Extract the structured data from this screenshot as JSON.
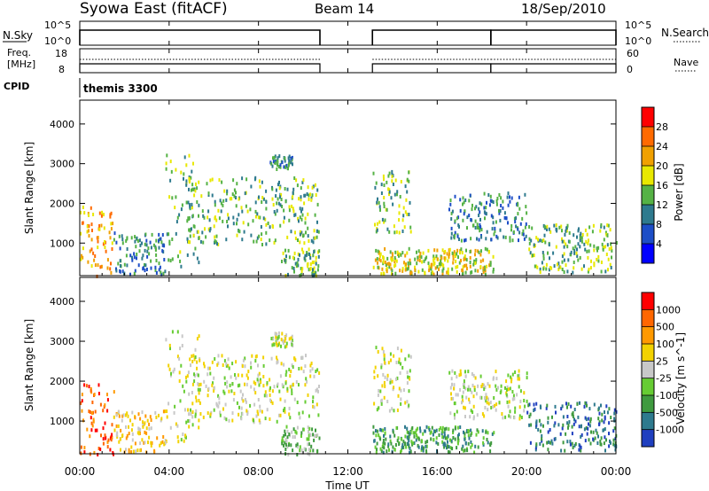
{
  "header": {
    "title": "Syowa East (fitACF)",
    "beam": "Beam 14",
    "date": "18/Sep/2010"
  },
  "param_panels": {
    "nsky_label": "N.Sky",
    "nsky_ticks": [
      "10^5",
      "10^0"
    ],
    "nsearch_label": "N.Search",
    "nsearch_ticks": [
      "10^5",
      "10^0"
    ],
    "freq_label_line1": "Freq.",
    "freq_label_line2": "[MHz]",
    "freq_ticks": [
      "18",
      "8"
    ],
    "nave_label": "Nave",
    "nave_ticks": [
      "60",
      "0"
    ],
    "cpid_label": "CPID",
    "cpid_value": "themis 3300",
    "data_gap_hours": [
      [
        10.75,
        13.1
      ]
    ],
    "nsearch_break_hours": [
      18.4
    ]
  },
  "chart_data": [
    {
      "type": "heatmap",
      "name": "power",
      "ylabel": "Slant Range [km]",
      "xlabel": "Time UT",
      "ylim": [
        180,
        4600
      ],
      "yticks": [
        1000,
        2000,
        3000,
        4000
      ],
      "xlim": [
        0,
        24
      ],
      "xticks": [
        "00:00",
        "04:00",
        "08:00",
        "12:00",
        "16:00",
        "20:00",
        "00:00"
      ],
      "colorbar": {
        "label": "Power [dB]",
        "ticks": [
          "28",
          "24",
          "20",
          "16",
          "12",
          "8",
          "4"
        ],
        "colors": [
          "#0000ff",
          "#1d4ec7",
          "#2e7a8e",
          "#55b245",
          "#e8e800",
          "#f0a000",
          "#ff6a00",
          "#ff0000"
        ]
      },
      "echo_regions": [
        {
          "t": [
            0.0,
            1.5
          ],
          "r": [
            200,
            1950
          ],
          "level": 5
        },
        {
          "t": [
            1.5,
            3.8
          ],
          "r": [
            250,
            1300
          ],
          "level": 2
        },
        {
          "t": [
            3.8,
            5.3
          ],
          "r": [
            450,
            3300
          ],
          "level": 3
        },
        {
          "t": [
            4.8,
            10.7
          ],
          "r": [
            1000,
            2700
          ],
          "level": 3
        },
        {
          "t": [
            8.5,
            9.5
          ],
          "r": [
            2900,
            3250
          ],
          "level": 2
        },
        {
          "t": [
            9.0,
            10.7
          ],
          "r": [
            200,
            900
          ],
          "level": 3
        },
        {
          "t": [
            13.1,
            18.5
          ],
          "r": [
            250,
            900
          ],
          "level": 4
        },
        {
          "t": [
            13.1,
            14.8
          ],
          "r": [
            1300,
            2900
          ],
          "level": 3
        },
        {
          "t": [
            16.5,
            20.0
          ],
          "r": [
            1100,
            2300
          ],
          "level": 2
        },
        {
          "t": [
            20.0,
            24.0
          ],
          "r": [
            300,
            1500
          ],
          "level": 3
        }
      ]
    },
    {
      "type": "heatmap",
      "name": "velocity",
      "ylabel": "Slant Range [km]",
      "xlabel": "Time UT",
      "ylim": [
        180,
        4600
      ],
      "yticks": [
        1000,
        2000,
        3000,
        4000
      ],
      "xlim": [
        0,
        24
      ],
      "xticks": [
        "00:00",
        "04:00",
        "08:00",
        "12:00",
        "16:00",
        "20:00",
        "00:00"
      ],
      "colorbar": {
        "label": "Velocity [m s^-1]",
        "ticks": [
          "1000",
          "500",
          "100",
          "25",
          "-25",
          "-100",
          "-500",
          "-1000"
        ],
        "colors": [
          "#1f3fbf",
          "#2e7a8e",
          "#3f9a3f",
          "#66cc33",
          "#c8c8c8",
          "#f2d200",
          "#ff9900",
          "#ff6600",
          "#ff0000"
        ]
      },
      "echo_regions": [
        {
          "t": [
            0.0,
            1.5
          ],
          "r": [
            200,
            1950
          ],
          "level": 7
        },
        {
          "t": [
            1.5,
            3.8
          ],
          "r": [
            250,
            1300
          ],
          "level": 5
        },
        {
          "t": [
            3.8,
            5.3
          ],
          "r": [
            450,
            3300
          ],
          "level": 4
        },
        {
          "t": [
            4.8,
            10.7
          ],
          "r": [
            1000,
            2700
          ],
          "level": 4
        },
        {
          "t": [
            8.5,
            9.5
          ],
          "r": [
            2900,
            3250
          ],
          "level": 4
        },
        {
          "t": [
            9.0,
            10.7
          ],
          "r": [
            200,
            900
          ],
          "level": 3
        },
        {
          "t": [
            13.1,
            18.5
          ],
          "r": [
            250,
            900
          ],
          "level": 2
        },
        {
          "t": [
            13.1,
            14.8
          ],
          "r": [
            1300,
            2900
          ],
          "level": 4
        },
        {
          "t": [
            16.5,
            20.0
          ],
          "r": [
            1100,
            2300
          ],
          "level": 4
        },
        {
          "t": [
            20.0,
            24.0
          ],
          "r": [
            300,
            1500
          ],
          "level": 1
        }
      ]
    }
  ]
}
